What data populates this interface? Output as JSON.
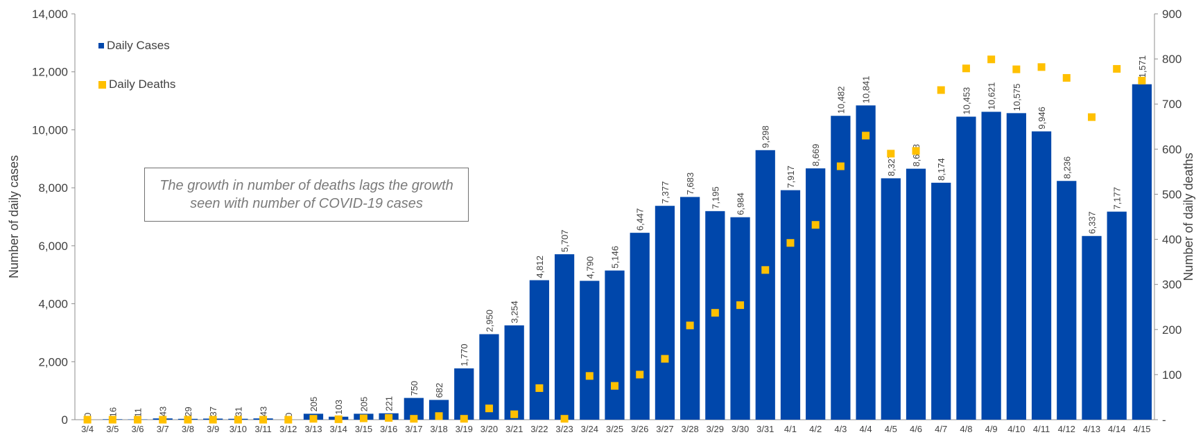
{
  "chart_data": {
    "type": "bar",
    "categories": [
      "3/4",
      "3/5",
      "3/6",
      "3/7",
      "3/8",
      "3/9",
      "3/10",
      "3/11",
      "3/12",
      "3/13",
      "3/14",
      "3/15",
      "3/16",
      "3/17",
      "3/18",
      "3/19",
      "3/20",
      "3/21",
      "3/22",
      "3/23",
      "3/24",
      "3/25",
      "3/26",
      "3/27",
      "3/28",
      "3/29",
      "3/30",
      "3/31",
      "4/1",
      "4/2",
      "4/3",
      "4/4",
      "4/5",
      "4/6",
      "4/7",
      "4/8",
      "4/9",
      "4/10",
      "4/11",
      "4/12",
      "4/13",
      "4/14",
      "4/15"
    ],
    "series": [
      {
        "name": "Daily Cases",
        "type": "bar",
        "axis": "left",
        "color": "#0047ab",
        "values": [
          0,
          16,
          11,
          43,
          29,
          37,
          31,
          43,
          0,
          205,
          103,
          205,
          221,
          750,
          682,
          1770,
          2950,
          3254,
          4812,
          5707,
          4790,
          5146,
          6447,
          7377,
          7683,
          7195,
          6984,
          9298,
          7917,
          8669,
          10482,
          10841,
          8327,
          8658,
          8174,
          10453,
          10621,
          10575,
          9946,
          8236,
          6337,
          7177,
          11571
        ],
        "labels": [
          "0",
          "16",
          "11",
          "43",
          "29",
          "37",
          "31",
          "43",
          "0",
          "205",
          "103",
          "205",
          "221",
          "750",
          "682",
          "1,770",
          "2,950",
          "3,254",
          "4,812",
          "5,707",
          "4,790",
          "5,146",
          "6,447",
          "7,377",
          "7,683",
          "7,195",
          "6,984",
          "9,298",
          "7,917",
          "8,669",
          "10,482",
          "10,841",
          "8,327",
          "8,658",
          "8,174",
          "10,453",
          "10,621",
          "10,575",
          "9,946",
          "8,236",
          "6,337",
          "7,177",
          "11,571"
        ]
      },
      {
        "name": "Daily Deaths",
        "type": "scatter",
        "axis": "right",
        "color": "#ffc000",
        "values": [
          0,
          0,
          0,
          0,
          0,
          0,
          0,
          0,
          0,
          2,
          1,
          3,
          4,
          2,
          8,
          2,
          25,
          12,
          70,
          2,
          97,
          75,
          100,
          135,
          209,
          237,
          254,
          332,
          392,
          432,
          562,
          630,
          590,
          596,
          731,
          779,
          799,
          777,
          782,
          758,
          671,
          778,
          752
        ]
      }
    ],
    "ylabel": "Number of daily cases",
    "y2label": "Number of daily deaths",
    "ylim": [
      0,
      14000
    ],
    "y2lim": [
      0,
      900
    ],
    "yticks": [
      "0",
      "2,000",
      "4,000",
      "6,000",
      "8,000",
      "10,000",
      "12,000",
      "14,000"
    ],
    "y2ticks": [
      "-",
      "100",
      "200",
      "300",
      "400",
      "500",
      "600",
      "700",
      "800",
      "900"
    ],
    "legend_position": "top-left",
    "grid": false
  },
  "annotation": {
    "line1": "The growth in number of deaths lags the growth",
    "line2": "seen with number of COVID-19 cases"
  }
}
